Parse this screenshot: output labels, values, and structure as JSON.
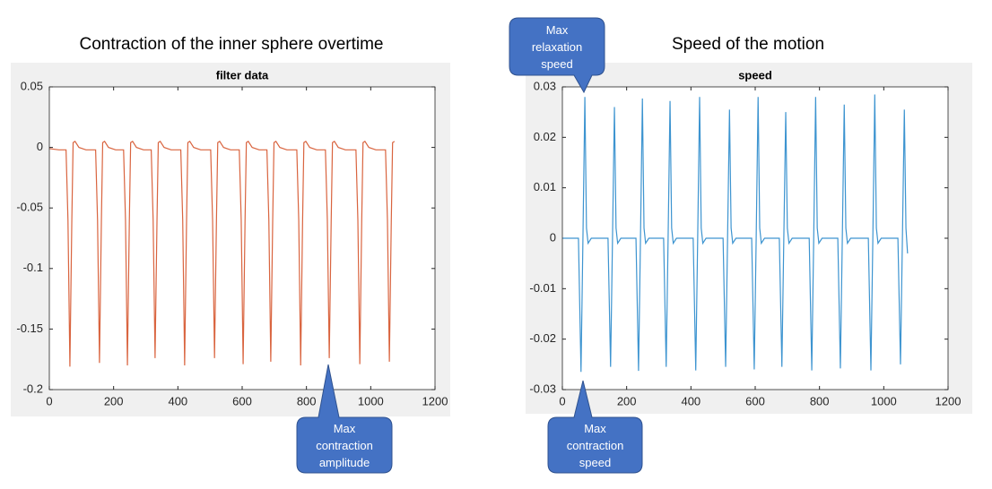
{
  "chart_data": [
    {
      "type": "line",
      "heading": "Contraction of the inner sphere overtime",
      "title": "filter data",
      "color": "#d9643f",
      "xlim": [
        0,
        1200
      ],
      "xticks": [
        0,
        200,
        400,
        600,
        800,
        1000,
        1200
      ],
      "ylim": [
        -0.2,
        0.05
      ],
      "yticks": [
        0.05,
        0,
        -0.05,
        -0.1,
        -0.15,
        -0.2
      ],
      "grid": false,
      "x": [
        0,
        30,
        52,
        58,
        64,
        70,
        74,
        80,
        92,
        114,
        144,
        150,
        156,
        162,
        166,
        172,
        184,
        206,
        231,
        237,
        243,
        249,
        253,
        259,
        271,
        293,
        317,
        323,
        329,
        335,
        339,
        345,
        357,
        379,
        409,
        415,
        421,
        427,
        431,
        437,
        449,
        471,
        502,
        508,
        514,
        520,
        524,
        530,
        542,
        564,
        591,
        597,
        603,
        609,
        613,
        619,
        631,
        653,
        677,
        683,
        689,
        695,
        699,
        705,
        717,
        739,
        770,
        776,
        782,
        788,
        792,
        798,
        810,
        832,
        859,
        865,
        871,
        877,
        881,
        887,
        899,
        921,
        954,
        960,
        966,
        972,
        976,
        982,
        994,
        1016,
        1046,
        1052,
        1058,
        1064,
        1068,
        1074
      ],
      "values": [
        -0.001,
        -0.002,
        -0.002,
        -0.06,
        -0.181,
        -0.06,
        0.004,
        0.005,
        0,
        -0.002,
        -0.002,
        -0.06,
        -0.178,
        -0.06,
        0.004,
        0.005,
        0,
        -0.002,
        -0.002,
        -0.06,
        -0.18,
        -0.06,
        0.004,
        0.005,
        0,
        -0.002,
        -0.002,
        -0.06,
        -0.174,
        -0.06,
        0.004,
        0.005,
        0,
        -0.002,
        -0.002,
        -0.06,
        -0.18,
        -0.06,
        0.004,
        0.005,
        0,
        -0.002,
        -0.002,
        -0.06,
        -0.174,
        -0.06,
        0.004,
        0.005,
        0,
        -0.002,
        -0.002,
        -0.06,
        -0.179,
        -0.06,
        0.004,
        0.005,
        0,
        -0.002,
        -0.002,
        -0.06,
        -0.177,
        -0.06,
        0.004,
        0.005,
        0,
        -0.002,
        -0.002,
        -0.06,
        -0.18,
        -0.06,
        0.004,
        0.005,
        0,
        -0.002,
        -0.002,
        -0.06,
        -0.174,
        -0.06,
        0.004,
        0.005,
        0,
        -0.002,
        -0.002,
        -0.06,
        -0.179,
        -0.06,
        0.004,
        0.005,
        0,
        -0.002,
        -0.002,
        -0.06,
        -0.177,
        -0.06,
        0.004,
        0.005
      ],
      "annotations": [
        "Max contraction amplitude"
      ]
    },
    {
      "type": "line",
      "heading": "Speed of the motion",
      "title": "speed",
      "color": "#3d94d0",
      "xlim": [
        0,
        1200
      ],
      "xticks": [
        0,
        200,
        400,
        600,
        800,
        1000,
        1200
      ],
      "ylim": [
        -0.03,
        0.03
      ],
      "yticks": [
        0.03,
        0.02,
        0.01,
        0,
        -0.01,
        -0.02,
        -0.03
      ],
      "grid": false,
      "x": [
        0,
        30,
        50,
        58,
        64,
        70,
        75,
        80,
        90,
        115,
        142,
        150,
        156,
        162,
        167,
        172,
        182,
        207,
        229,
        237,
        243,
        249,
        254,
        259,
        269,
        294,
        315,
        323,
        329,
        335,
        340,
        345,
        355,
        380,
        407,
        415,
        421,
        427,
        432,
        437,
        447,
        472,
        500,
        508,
        514,
        520,
        525,
        530,
        540,
        565,
        589,
        597,
        603,
        609,
        614,
        619,
        629,
        654,
        675,
        683,
        689,
        695,
        700,
        705,
        715,
        740,
        768,
        776,
        782,
        788,
        793,
        798,
        808,
        833,
        857,
        865,
        871,
        877,
        882,
        887,
        897,
        922,
        952,
        960,
        966,
        972,
        977,
        982,
        992,
        1017,
        1044,
        1052,
        1058,
        1064,
        1069,
        1074
      ],
      "values": [
        0,
        0,
        0,
        -0.0265,
        0,
        0.028,
        0.002,
        -0.001,
        0,
        0,
        0,
        -0.0255,
        0,
        0.026,
        0.002,
        -0.001,
        0,
        0,
        0,
        -0.0263,
        0,
        0.0277,
        0.002,
        -0.001,
        0,
        0,
        0,
        -0.0255,
        0,
        0.0272,
        0.002,
        -0.001,
        0,
        0,
        0,
        -0.0262,
        0,
        0.028,
        0.002,
        -0.001,
        0,
        0,
        0,
        -0.0255,
        0,
        0.0255,
        0.002,
        -0.001,
        0,
        0,
        0,
        -0.026,
        0,
        0.028,
        0.002,
        -0.001,
        0,
        0,
        0,
        -0.0255,
        0,
        0.025,
        0.002,
        -0.001,
        0,
        0,
        0,
        -0.0262,
        0,
        0.028,
        0.002,
        -0.001,
        0,
        0,
        0,
        -0.0258,
        0,
        0.0265,
        0.002,
        -0.001,
        0,
        0,
        0,
        -0.0262,
        0,
        0.0285,
        0.002,
        -0.001,
        0,
        0,
        0,
        -0.025,
        0,
        0.0255,
        0.002,
        -0.003
      ],
      "annotations": [
        "Max relaxation speed",
        "Max contraction speed"
      ]
    }
  ]
}
